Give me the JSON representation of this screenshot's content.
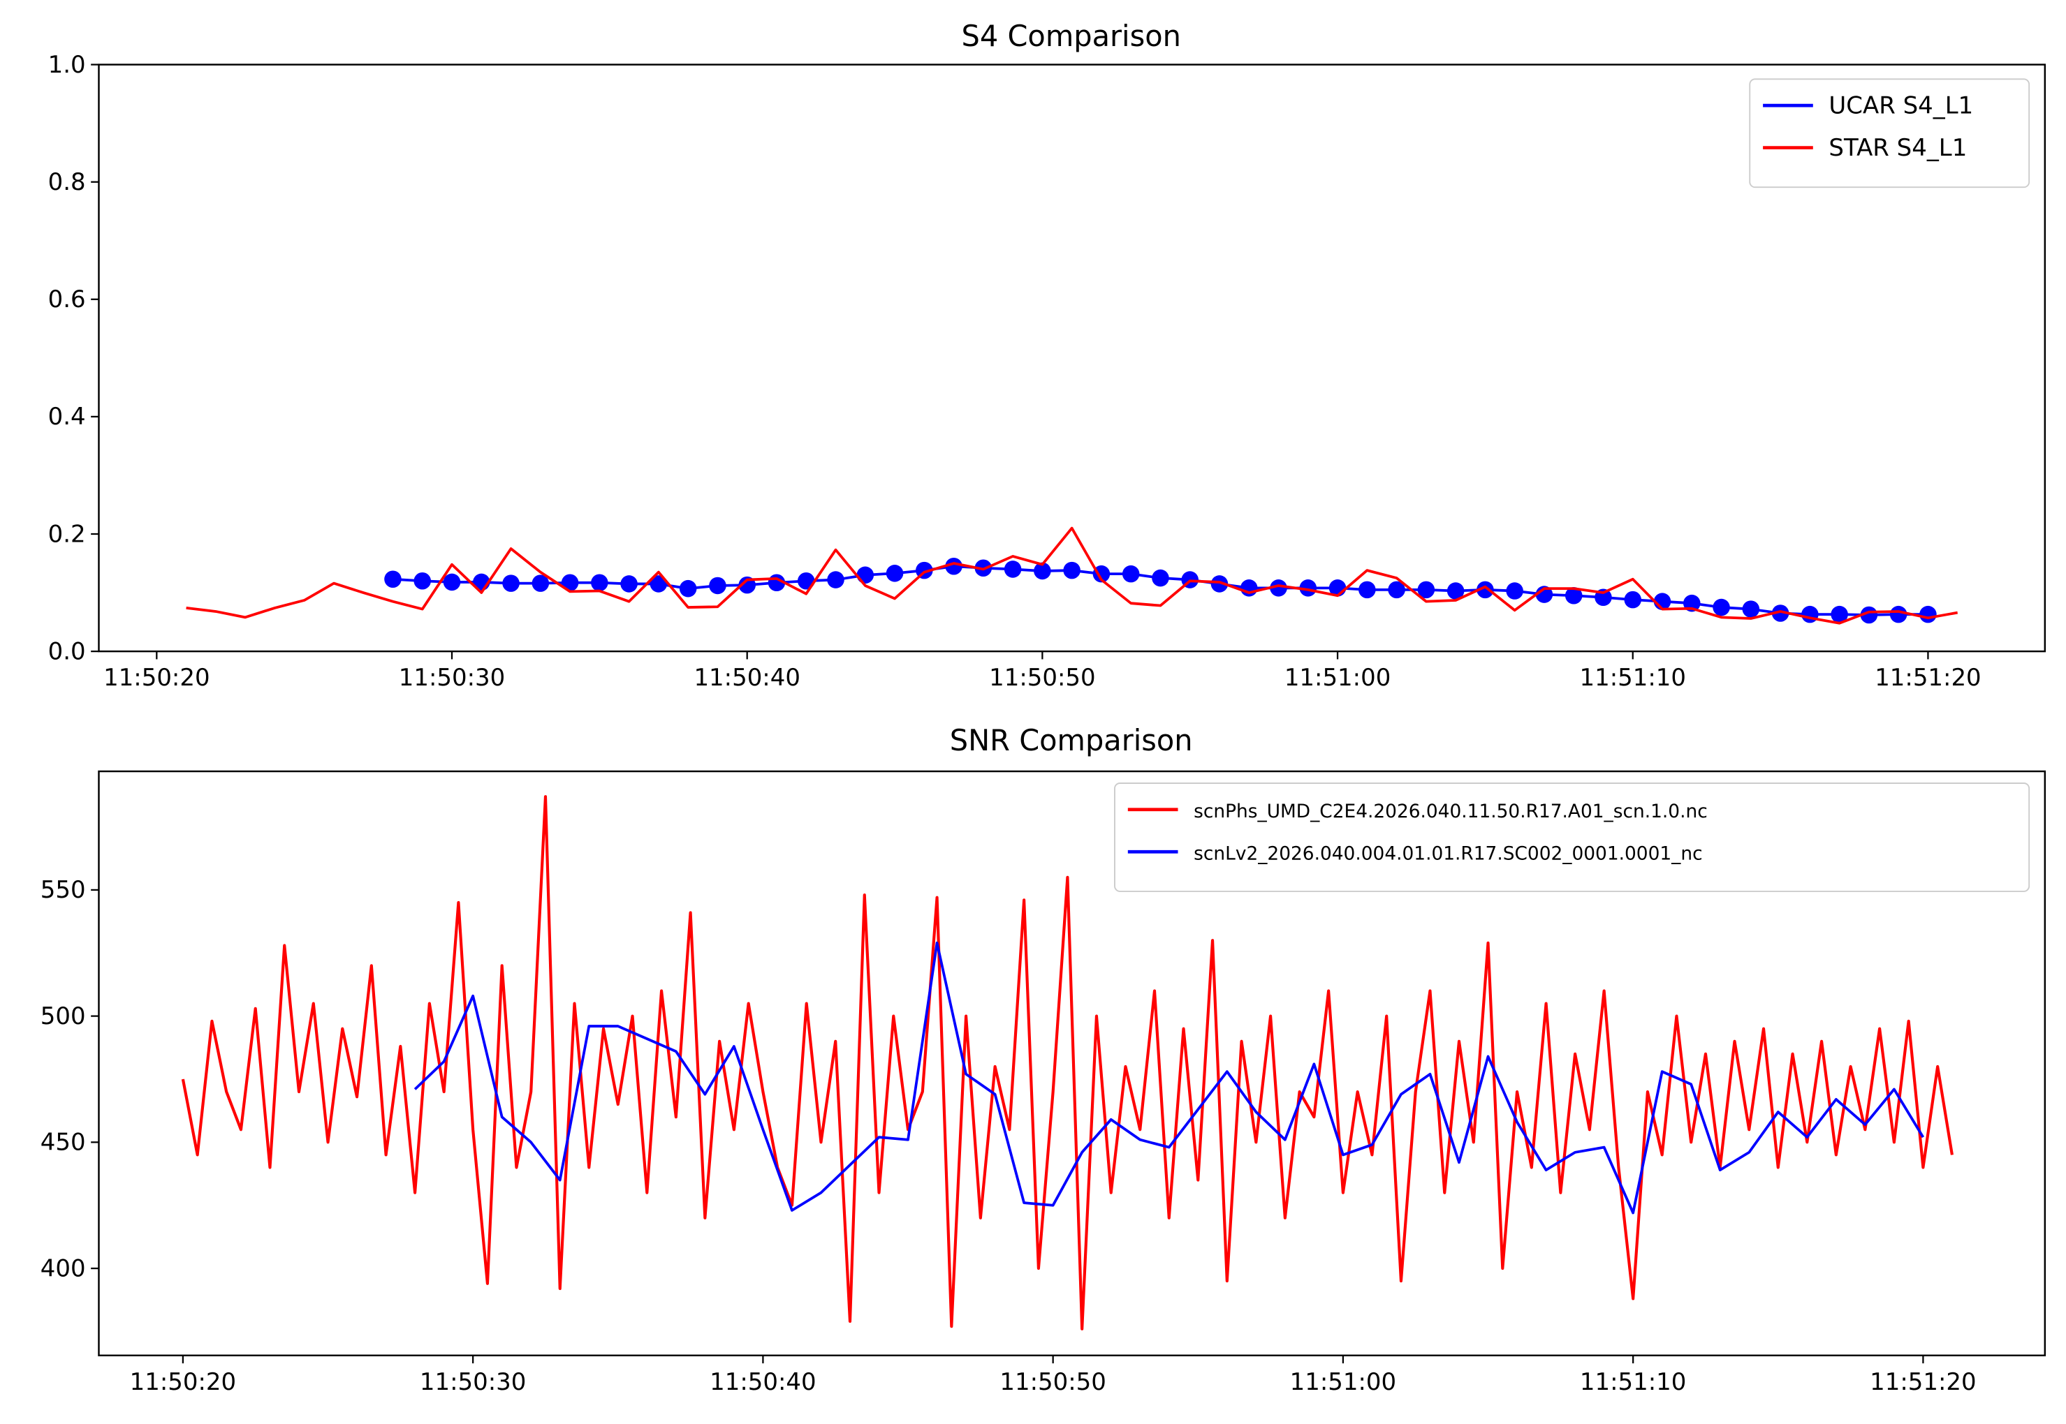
{
  "chart_data": [
    {
      "type": "line",
      "title": "S4 Comparison",
      "xlabel": "",
      "ylabel": "",
      "x_unit": "seconds after 11:50:20",
      "xlim": [
        -1.96,
        63.96
      ],
      "ylim": [
        0,
        1.0
      ],
      "xticks": [
        0,
        10,
        20,
        30,
        40,
        50,
        60
      ],
      "xtick_labels": [
        "11:50:20",
        "11:50:30",
        "11:50:40",
        "11:50:50",
        "11:51:00",
        "11:51:10",
        "11:51:20"
      ],
      "yticks": [
        0,
        0.2,
        0.4,
        0.6,
        0.8,
        1.0
      ],
      "ytick_labels": [
        "0.0",
        "0.2",
        "0.4",
        "0.6",
        "0.8",
        "1.0"
      ],
      "legend_position": "top-right",
      "series": [
        {
          "name": "UCAR S4_L1",
          "color": "#0000ff",
          "markers": true,
          "x_start": 8,
          "x_step": 1,
          "values": [
            0.123,
            0.12,
            0.118,
            0.118,
            0.116,
            0.116,
            0.117,
            0.117,
            0.115,
            0.115,
            0.107,
            0.112,
            0.113,
            0.117,
            0.12,
            0.122,
            0.13,
            0.133,
            0.138,
            0.145,
            0.142,
            0.14,
            0.137,
            0.138,
            0.132,
            0.132,
            0.125,
            0.122,
            0.115,
            0.108,
            0.108,
            0.108,
            0.108,
            0.105,
            0.105,
            0.105,
            0.103,
            0.105,
            0.103,
            0.097,
            0.095,
            0.092,
            0.088,
            0.085,
            0.082,
            0.075,
            0.072,
            0.065,
            0.063,
            0.063,
            0.062,
            0.063,
            0.063
          ]
        },
        {
          "name": "STAR S4_L1",
          "color": "#ff0000",
          "markers": false,
          "x_start": 1,
          "x_step": 1,
          "values": [
            0.074,
            0.068,
            0.058,
            0.074,
            0.087,
            0.116,
            0.1,
            0.085,
            0.072,
            0.148,
            0.1,
            0.175,
            0.135,
            0.102,
            0.103,
            0.085,
            0.135,
            0.075,
            0.076,
            0.122,
            0.124,
            0.098,
            0.173,
            0.112,
            0.09,
            0.135,
            0.15,
            0.14,
            0.162,
            0.148,
            0.21,
            0.122,
            0.082,
            0.078,
            0.12,
            0.118,
            0.1,
            0.112,
            0.105,
            0.095,
            0.138,
            0.125,
            0.085,
            0.087,
            0.11,
            0.07,
            0.107,
            0.107,
            0.1,
            0.123,
            0.072,
            0.073,
            0.058,
            0.056,
            0.068,
            0.057,
            0.048,
            0.067,
            0.068,
            0.057,
            0.066
          ]
        }
      ]
    },
    {
      "type": "line",
      "title": "SNR Comparison",
      "xlabel": "",
      "ylabel": "",
      "x_unit": "seconds after 11:50:20",
      "xlim": [
        -2.9,
        64.2
      ],
      "ylim": [
        365.5,
        597
      ],
      "xticks": [
        0,
        10,
        20,
        30,
        40,
        50,
        60
      ],
      "xtick_labels": [
        "11:50:20",
        "11:50:30",
        "11:50:40",
        "11:50:50",
        "11:51:00",
        "11:51:10",
        "11:51:20"
      ],
      "yticks": [
        400,
        450,
        500,
        550
      ],
      "ytick_labels": [
        "400",
        "450",
        "500",
        "550"
      ],
      "legend_position": "top-right",
      "series": [
        {
          "name": "scnPhs_UMD_C2E4.2026.040.11.50.R17.A01_scn.1.0.nc",
          "color": "#ff0000",
          "markers": false,
          "x_start": 0,
          "x_step": 0.5,
          "values": [
            475,
            445,
            498,
            470,
            455,
            503,
            440,
            528,
            470,
            505,
            450,
            495,
            468,
            520,
            445,
            488,
            430,
            505,
            470,
            545,
            455,
            394,
            520,
            440,
            470,
            587,
            392,
            505,
            440,
            495,
            465,
            500,
            430,
            510,
            460,
            541,
            420,
            490,
            455,
            505,
            470,
            440,
            425,
            505,
            450,
            490,
            379,
            548,
            430,
            500,
            455,
            470,
            547,
            377,
            500,
            420,
            480,
            455,
            546,
            400,
            470,
            555,
            376,
            500,
            430,
            480,
            455,
            510,
            420,
            495,
            435,
            530,
            395,
            490,
            450,
            500,
            420,
            470,
            460,
            510,
            430,
            470,
            445,
            500,
            395,
            470,
            510,
            430,
            490,
            450,
            529,
            400,
            470,
            440,
            505,
            430,
            485,
            455,
            510,
            440,
            388,
            470,
            445,
            500,
            450,
            485,
            440,
            490,
            455,
            495,
            440,
            485,
            450,
            490,
            445,
            480,
            455,
            495,
            450,
            498,
            440,
            480,
            445
          ]
        },
        {
          "name": "scnLv2_2026.040.004.01.01.R17.SC002_0001.0001_nc",
          "color": "#0000ff",
          "markers": false,
          "x_start": 8,
          "x_step": 1,
          "values": [
            471,
            482,
            508,
            460,
            450,
            435,
            496,
            496,
            491,
            486,
            469,
            488,
            455,
            423,
            430,
            441,
            452,
            451,
            529,
            477,
            469,
            426,
            425,
            446,
            459,
            451,
            448,
            463,
            478,
            462,
            451,
            481,
            445,
            449,
            469,
            477,
            442,
            484,
            458,
            439,
            446,
            448,
            422,
            478,
            473,
            439,
            446,
            462,
            452,
            467,
            457,
            471,
            452
          ]
        }
      ]
    }
  ]
}
